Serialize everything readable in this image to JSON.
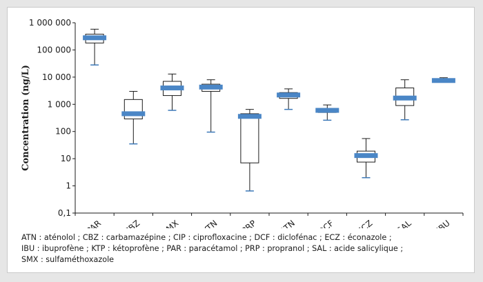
{
  "chart_data": {
    "type": "box",
    "title": "",
    "xlabel": "",
    "ylabel": "Concentration (ng/L)",
    "yscale": "log",
    "ylim": [
      0.1,
      1000000
    ],
    "grid": false,
    "legend": "none",
    "yticks": [
      {
        "value": 0.1,
        "label": "0,1"
      },
      {
        "value": 1,
        "label": "1"
      },
      {
        "value": 10,
        "label": "10"
      },
      {
        "value": 100,
        "label": "100"
      },
      {
        "value": 1000,
        "label": "1 000"
      },
      {
        "value": 10000,
        "label": "10 000"
      },
      {
        "value": 100000,
        "label": "100 000"
      },
      {
        "value": 1000000,
        "label": "1 000 000"
      }
    ],
    "categories": [
      "PAR",
      "CBZ",
      "SMX",
      "KTN",
      "PRP",
      "ATN",
      "DCF",
      "ECZ",
      "SAL",
      "IBU"
    ],
    "boxes": [
      {
        "min": 28000,
        "q1": 180000,
        "median": 280000,
        "q3": 380000,
        "max": 580000
      },
      {
        "min": 35,
        "q1": 290,
        "median": 450,
        "q3": 1500,
        "max": 3000
      },
      {
        "min": 600,
        "q1": 2100,
        "median": 4000,
        "q3": 7000,
        "max": 13000
      },
      {
        "min": 95,
        "q1": 3000,
        "median": 4300,
        "q3": 5500,
        "max": 8000
      },
      {
        "min": 0.65,
        "q1": 7,
        "median": 360,
        "q3": 450,
        "max": 650
      },
      {
        "min": 650,
        "q1": 1650,
        "median": 2200,
        "q3": 2700,
        "max": 3700
      },
      {
        "min": 260,
        "q1": 500,
        "median": 600,
        "q3": 700,
        "max": 950
      },
      {
        "min": 2,
        "q1": 7.5,
        "median": 13,
        "q3": 19,
        "max": 55
      },
      {
        "min": 270,
        "q1": 900,
        "median": 1700,
        "q3": 4000,
        "max": 8000
      },
      {
        "min": 7000,
        "q1": 7200,
        "median": 7500,
        "q3": 8000,
        "max": 9500
      }
    ],
    "colors": {
      "median": "#4a86c6",
      "whisker_cap": "#3b78b8",
      "box_stroke": "#1a1a1a",
      "axis": "#1a1a1a"
    }
  },
  "note": {
    "lines": [
      "ATN : aténolol ; CBZ : carbamazépine ; CIP : ciprofloxacine ; DCF : diclofénac ; ECZ : éconazole ;",
      "IBU : ibuprofène ; KTP : kétoprofène ;  PAR : paracétamol ; PRP : propranol ; SAL : acide salicylique ;",
      "SMX : sulfaméthoxazole"
    ]
  }
}
